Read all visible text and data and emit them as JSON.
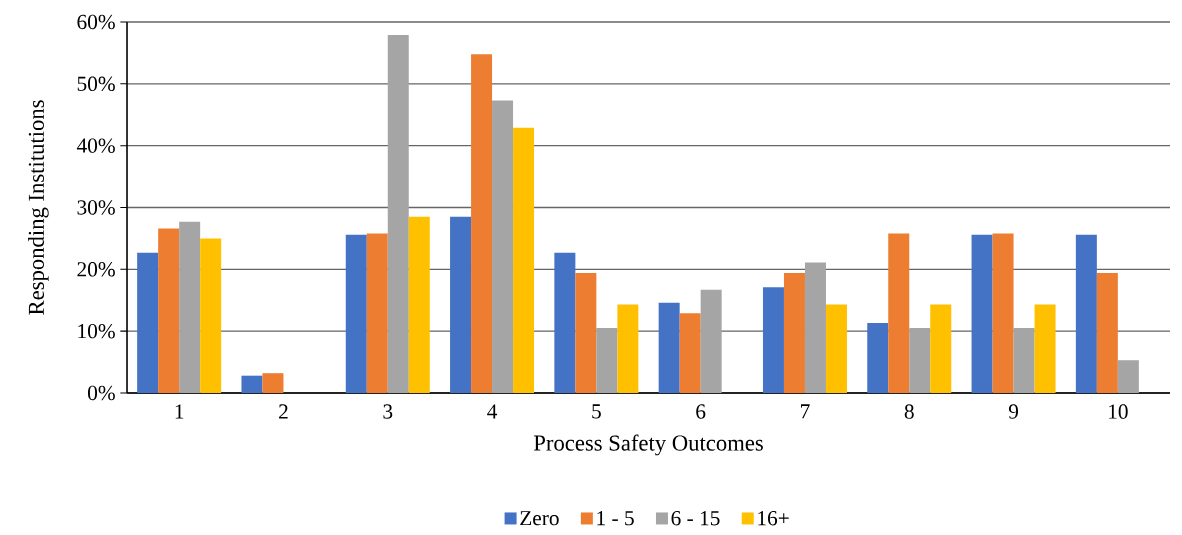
{
  "chart_data": {
    "type": "bar",
    "xlabel": "Process Safety Outcomes",
    "ylabel": "Responding Institutions",
    "categories": [
      "1",
      "2",
      "3",
      "4",
      "5",
      "6",
      "7",
      "8",
      "9",
      "10"
    ],
    "series": [
      {
        "name": "Zero",
        "color": "#4472c4",
        "values": [
          22.7,
          2.8,
          25.6,
          28.5,
          22.7,
          14.6,
          17.1,
          11.3,
          25.6,
          25.6
        ]
      },
      {
        "name": "1 - 5",
        "color": "#ed7d31",
        "values": [
          26.6,
          3.2,
          25.8,
          54.8,
          19.4,
          12.9,
          19.4,
          25.8,
          25.8,
          19.4
        ]
      },
      {
        "name": "6 - 15",
        "color": "#a5a5a5",
        "values": [
          27.7,
          0,
          57.9,
          47.3,
          10.5,
          16.7,
          21.1,
          10.5,
          10.5,
          5.3
        ]
      },
      {
        "name": "16+",
        "color": "#ffc000",
        "values": [
          25.0,
          0,
          28.5,
          42.9,
          14.3,
          0,
          14.3,
          14.3,
          14.3,
          0
        ]
      }
    ],
    "ylim": [
      0,
      60
    ],
    "yticks": [
      {
        "value": 0,
        "label": "0%"
      },
      {
        "value": 10,
        "label": "10%"
      },
      {
        "value": 20,
        "label": "20%"
      },
      {
        "value": 30,
        "label": "30%"
      },
      {
        "value": 40,
        "label": "40%"
      },
      {
        "value": 50,
        "label": "50%"
      },
      {
        "value": 60,
        "label": "60%"
      }
    ],
    "grid": "y",
    "legend": "bottom"
  }
}
